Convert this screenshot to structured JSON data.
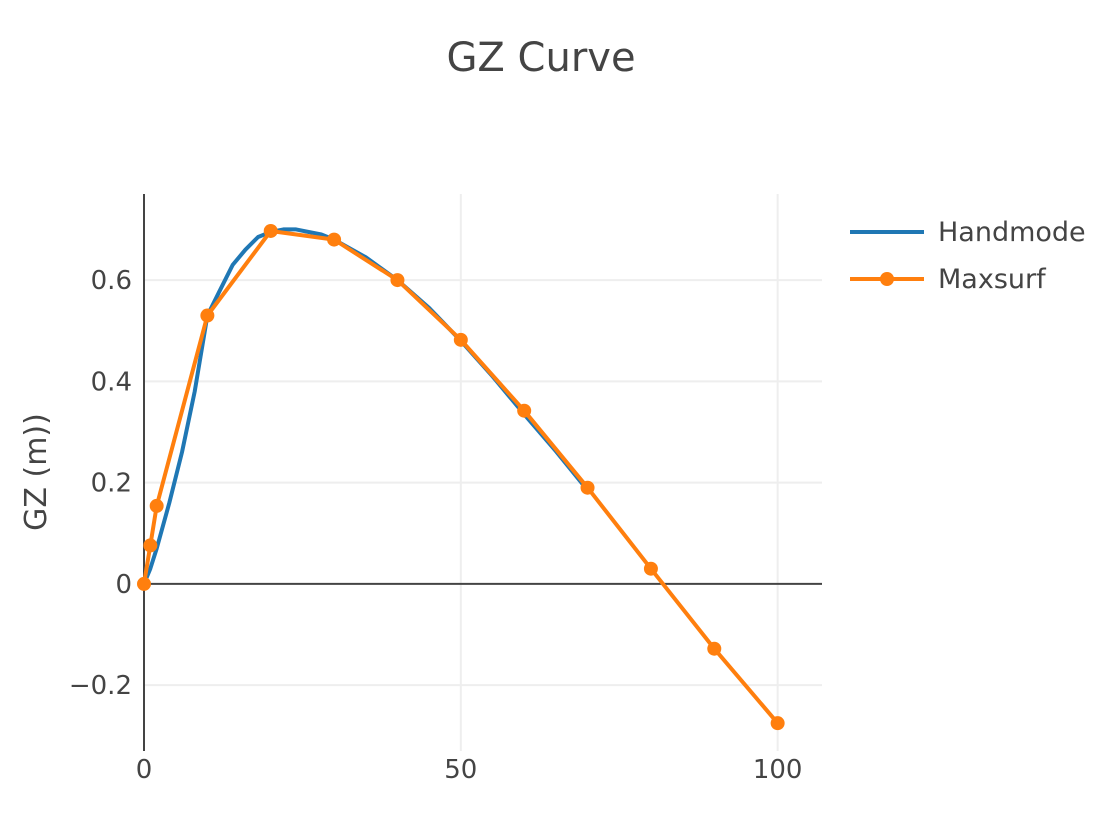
{
  "chart_data": {
    "type": "line",
    "title": "GZ Curve",
    "xlabel": "",
    "ylabel": "GZ (m))",
    "xlim": [
      0,
      107
    ],
    "ylim": [
      -0.33,
      0.77
    ],
    "x_ticks": [
      0,
      50,
      100
    ],
    "x_tick_labels": [
      "0",
      "50",
      "100"
    ],
    "y_ticks": [
      -0.2,
      0,
      0.2,
      0.4,
      0.6
    ],
    "y_tick_labels": [
      "−0.2",
      "0",
      "0.2",
      "0.4",
      "0.6"
    ],
    "grid": true,
    "legend_position": "top-right",
    "series": [
      {
        "name": "Handmode",
        "color": "#1f77b4",
        "markers": false,
        "x": [
          0,
          1,
          2,
          4,
          6,
          8,
          10,
          12,
          14,
          16,
          18,
          20,
          22,
          24,
          26,
          28,
          30,
          35,
          40,
          45,
          50,
          55,
          60,
          65,
          70
        ],
        "y": [
          0,
          0.03,
          0.07,
          0.16,
          0.26,
          0.38,
          0.53,
          0.58,
          0.63,
          0.66,
          0.685,
          0.695,
          0.7,
          0.7,
          0.695,
          0.69,
          0.68,
          0.645,
          0.6,
          0.545,
          0.48,
          0.41,
          0.335,
          0.262,
          0.185
        ]
      },
      {
        "name": "Maxsurf",
        "color": "#ff7f0e",
        "markers": true,
        "x": [
          0,
          1,
          2,
          10,
          20,
          30,
          40,
          50,
          60,
          70,
          80,
          90,
          100
        ],
        "y": [
          0,
          0.076,
          0.154,
          0.53,
          0.697,
          0.68,
          0.6,
          0.482,
          0.342,
          0.19,
          0.03,
          -0.128,
          -0.275
        ]
      }
    ]
  }
}
